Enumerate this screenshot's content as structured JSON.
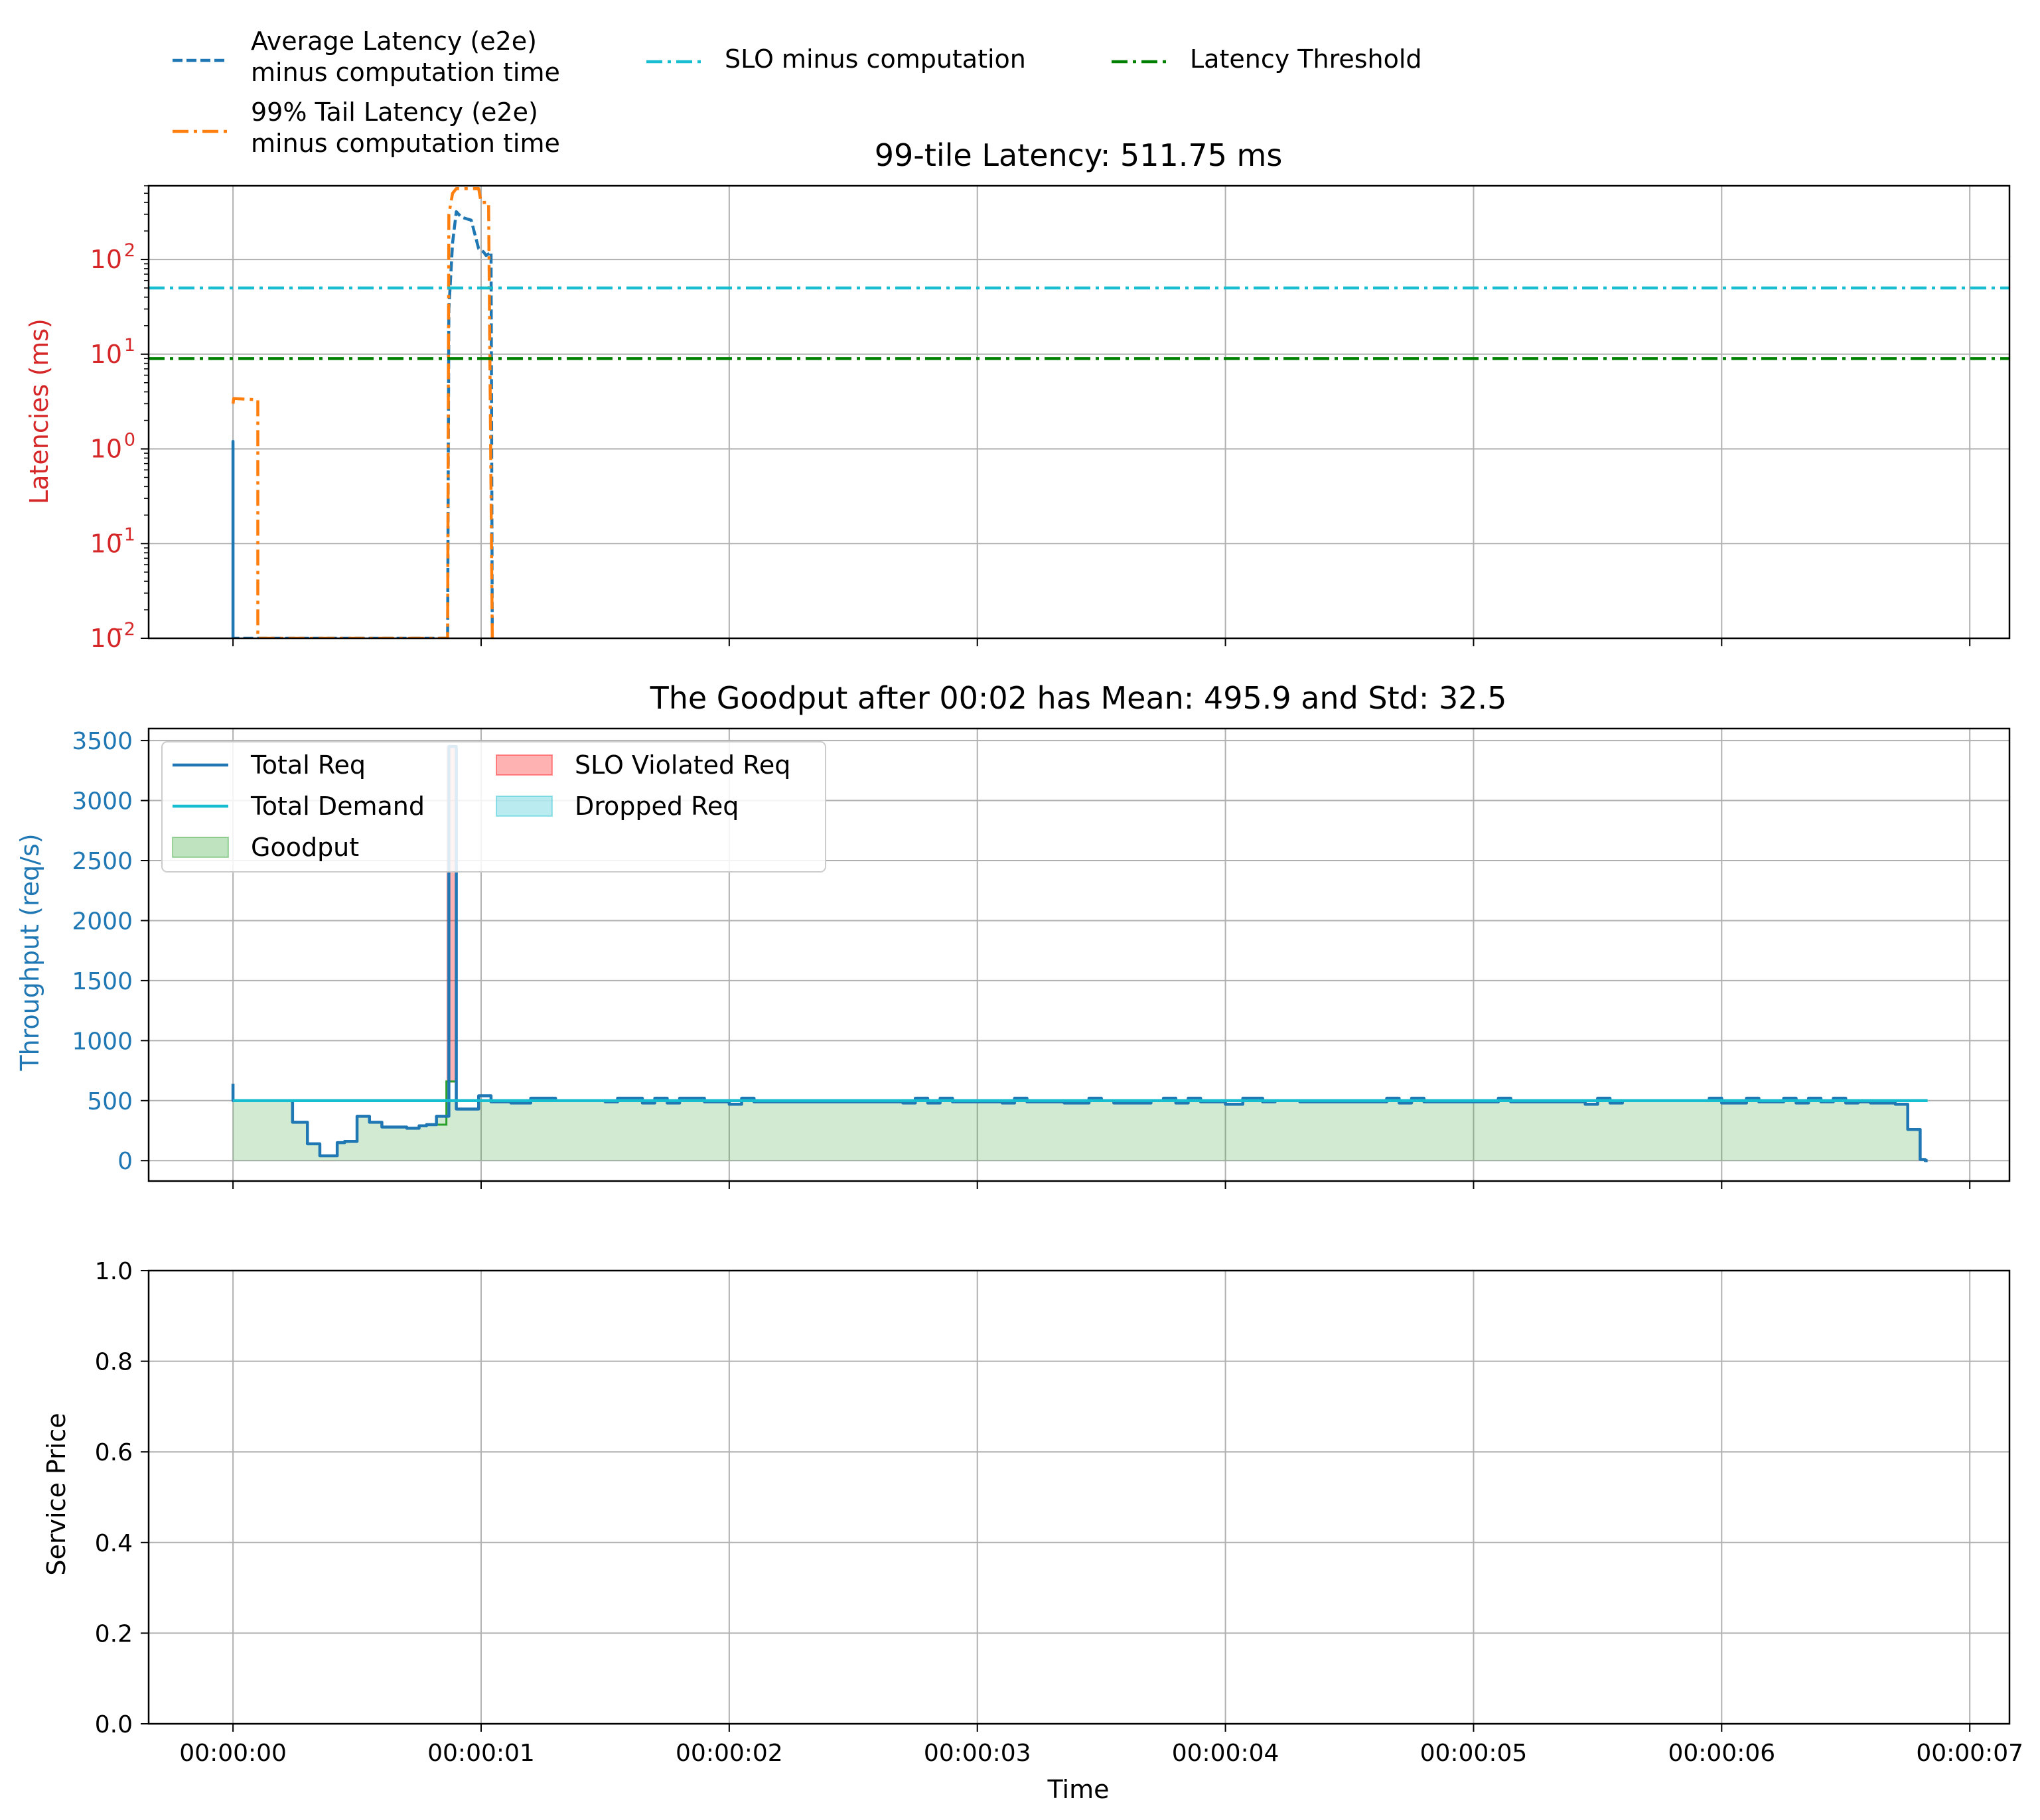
{
  "legend_top": {
    "entries": [
      {
        "label_lines": [
          "Average Latency (e2e)",
          "minus computation time"
        ],
        "color": "#1f77b4",
        "dash": "dashed"
      },
      {
        "label_lines": [
          "99% Tail Latency (e2e)",
          "minus computation time"
        ],
        "color": "#ff7f0e",
        "dash": "dashdot"
      },
      {
        "label_lines": [
          "SLO minus computation"
        ],
        "color": "#17becf",
        "dash": "dashdot"
      },
      {
        "label_lines": [
          "Latency Threshold"
        ],
        "color": "#008000",
        "dash": "dashdot"
      }
    ]
  },
  "x_axis": {
    "label": "Time",
    "range_seconds": [
      -0.34,
      7.16
    ],
    "ticks": [
      {
        "value": 0,
        "label": "00:00:00"
      },
      {
        "value": 1,
        "label": "00:00:01"
      },
      {
        "value": 2,
        "label": "00:00:02"
      },
      {
        "value": 3,
        "label": "00:00:03"
      },
      {
        "value": 4,
        "label": "00:00:04"
      },
      {
        "value": 5,
        "label": "00:00:05"
      },
      {
        "value": 6,
        "label": "00:00:06"
      },
      {
        "value": 7,
        "label": "00:00:07"
      }
    ]
  },
  "chart_data": [
    {
      "id": "latency",
      "type": "line",
      "title": "99-tile Latency: 511.75 ms",
      "ylabel": "Latencies (ms)",
      "ylabel_color": "#d62728",
      "yscale": "log",
      "ylim": [
        0.01,
        600
      ],
      "yticks": [
        {
          "value": 0.01,
          "base": "10",
          "exp": "−2"
        },
        {
          "value": 0.1,
          "base": "10",
          "exp": "−1"
        },
        {
          "value": 1,
          "base": "10",
          "exp": "0"
        },
        {
          "value": 10,
          "base": "10",
          "exp": "1"
        },
        {
          "value": 100,
          "base": "10",
          "exp": "2"
        }
      ],
      "grid": true,
      "series": [
        {
          "name": "Average Latency (e2e) minus computation time",
          "color": "#1f77b4",
          "dash": "dashed",
          "x": [
            0.0,
            0.0,
            0.0,
            0.865,
            0.87,
            0.885,
            0.9,
            0.92,
            0.96,
            0.99,
            1.01,
            1.02,
            1.04,
            1.045
          ],
          "y": [
            0.01,
            1.2,
            0.01,
            0.01,
            30,
            150,
            320,
            280,
            260,
            130,
            120,
            110,
            120,
            0.01
          ]
        },
        {
          "name": "99% Tail Latency (e2e) minus computation time",
          "color": "#ff7f0e",
          "dash": "dashdot",
          "x": [
            0.0,
            0.003,
            0.1,
            0.1,
            0.865,
            0.87,
            0.885,
            0.9,
            0.99,
            1.0,
            1.03,
            1.045
          ],
          "y": [
            3.0,
            3.4,
            3.3,
            0.01,
            0.01,
            300,
            500,
            560,
            560,
            400,
            400,
            0.01
          ]
        },
        {
          "name": "SLO minus computation",
          "color": "#17becf",
          "dash": "dashdot",
          "x": [
            -0.34,
            7.16
          ],
          "y": [
            50,
            50
          ]
        },
        {
          "name": "Latency Threshold",
          "color": "#008000",
          "dash": "dashdot",
          "x": [
            -0.34,
            7.16
          ],
          "y": [
            9,
            9
          ]
        }
      ]
    },
    {
      "id": "throughput",
      "type": "line",
      "title": "The Goodput after 00:02 has Mean: 495.9 and Std: 32.5",
      "ylabel": "Throughput (req/s)",
      "ylabel_color": "#1f77b4",
      "ylim": [
        -170,
        3600
      ],
      "yticks": [
        0,
        500,
        1000,
        1500,
        2000,
        2500,
        3000,
        3500
      ],
      "grid": true,
      "legend": [
        {
          "label": "Total Req",
          "kind": "line",
          "color": "#1f77b4"
        },
        {
          "label": "Total Demand",
          "kind": "line",
          "color": "#17becf"
        },
        {
          "label": "Goodput",
          "kind": "patch",
          "color": "#2ca02c"
        },
        {
          "label": "SLO Violated Req",
          "kind": "patch",
          "color": "#ff0000"
        },
        {
          "label": "Dropped Req",
          "kind": "patch",
          "color": "#17becf"
        }
      ],
      "series": [
        {
          "name": "Total Req",
          "color": "#1f77b4",
          "step": true,
          "x": [
            0.0,
            0.0,
            0.01,
            0.24,
            0.29,
            0.3,
            0.32,
            0.35,
            0.4,
            0.42,
            0.45,
            0.5,
            0.5,
            0.55,
            0.6,
            0.65,
            0.7,
            0.75,
            0.78,
            0.82,
            0.85,
            0.87,
            0.9,
            0.94,
            0.99,
            1.04,
            1.12,
            1.2,
            1.3,
            1.5,
            1.55,
            1.65,
            1.7,
            1.75,
            1.8,
            1.9,
            2.0,
            2.05,
            2.1,
            2.7,
            2.75,
            2.8,
            2.85,
            2.9,
            3.0,
            3.1,
            3.15,
            3.2,
            3.35,
            3.45,
            3.5,
            3.55,
            3.7,
            3.75,
            3.8,
            3.85,
            3.9,
            4.0,
            4.07,
            4.15,
            4.2,
            4.3,
            4.6,
            4.65,
            4.7,
            4.75,
            4.8,
            4.85,
            4.9,
            5.0,
            5.1,
            5.15,
            5.2,
            5.45,
            5.5,
            5.55,
            5.6,
            5.9,
            5.95,
            6.0,
            6.1,
            6.15,
            6.25,
            6.3,
            6.35,
            6.4,
            6.45,
            6.5,
            6.55,
            6.6,
            6.65,
            6.7,
            6.75,
            6.8,
            6.82,
            6.83
          ],
          "y": [
            640,
            500,
            500,
            320,
            320,
            140,
            140,
            40,
            40,
            150,
            160,
            370,
            370,
            320,
            280,
            280,
            270,
            290,
            300,
            370,
            370,
            3450,
            430,
            430,
            540,
            490,
            480,
            520,
            500,
            490,
            520,
            480,
            520,
            480,
            520,
            490,
            470,
            520,
            490,
            480,
            520,
            480,
            520,
            490,
            490,
            480,
            520,
            490,
            480,
            520,
            500,
            480,
            500,
            520,
            480,
            520,
            490,
            470,
            520,
            490,
            500,
            490,
            490,
            520,
            480,
            520,
            490,
            490,
            490,
            490,
            520,
            490,
            490,
            470,
            520,
            480,
            500,
            500,
            520,
            480,
            520,
            490,
            520,
            480,
            520,
            490,
            520,
            480,
            490,
            480,
            480,
            470,
            260,
            10,
            0,
            0
          ]
        },
        {
          "name": "Total Demand",
          "color": "#17becf",
          "x": [
            0.0,
            6.83
          ],
          "y": [
            500,
            500
          ]
        }
      ],
      "goodput_note": "filled area under Total Req, clipped to demand",
      "slo_violated_spike": {
        "x": [
          0.86,
          0.9
        ],
        "top": 3450,
        "bottom": 650
      }
    },
    {
      "id": "price",
      "type": "line",
      "title": "",
      "ylabel": "Service Price",
      "ylabel_color": "#000000",
      "ylim": [
        0.0,
        1.0
      ],
      "yticks": [
        "0.0",
        "0.2",
        "0.4",
        "0.6",
        "0.8",
        "1.0"
      ],
      "grid": true,
      "series": []
    }
  ]
}
